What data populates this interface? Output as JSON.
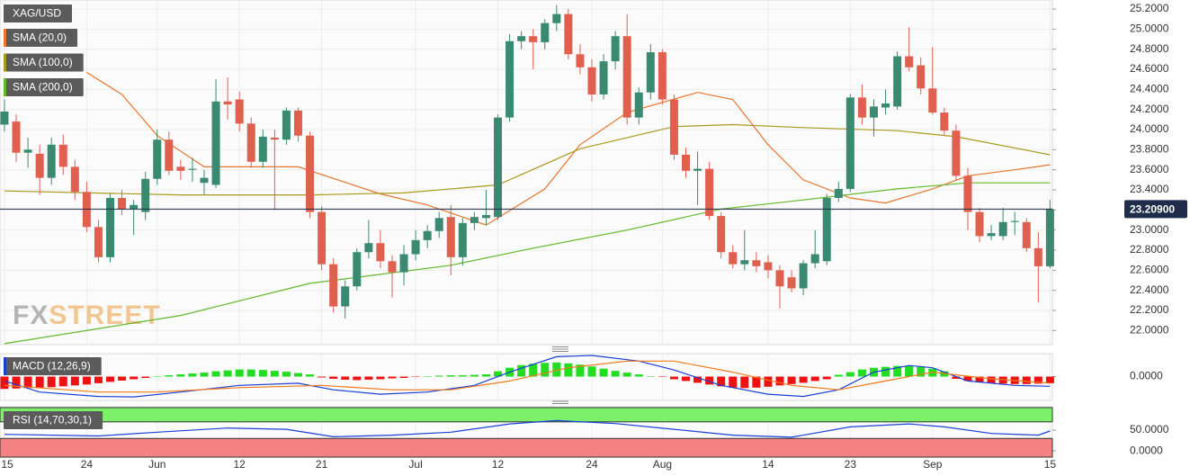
{
  "chart_data": [
    {
      "type": "candlestick",
      "symbol": "XAG/USD",
      "watermark": [
        "FX",
        "STREET"
      ],
      "up_color": "#3a8a72",
      "down_color": "#e0604f",
      "xlim": [
        -0.38,
        89.2
      ],
      "ylim": [
        21.86,
        25.29
      ],
      "yticks": [
        {
          "value": 22.0,
          "label": "22.0000"
        },
        {
          "value": 22.2,
          "label": "22.2000"
        },
        {
          "value": 22.4,
          "label": "22.4000"
        },
        {
          "value": 22.6,
          "label": "22.6000"
        },
        {
          "value": 22.8,
          "label": "22.8000"
        },
        {
          "value": 23.0,
          "label": "23.0000"
        },
        {
          "value": 23.2,
          "label": "23.2000"
        },
        {
          "value": 23.4,
          "label": "23.4000"
        },
        {
          "value": 23.6,
          "label": "23.6000"
        },
        {
          "value": 23.8,
          "label": "23.8000"
        },
        {
          "value": 24.0,
          "label": "24.0000"
        },
        {
          "value": 24.2,
          "label": "24.2000"
        },
        {
          "value": 24.4,
          "label": "24.4000"
        },
        {
          "value": 24.6,
          "label": "24.6000"
        },
        {
          "value": 24.8,
          "label": "24.8000"
        },
        {
          "value": 25.0,
          "label": "25.0000"
        },
        {
          "value": 25.2,
          "label": "25.2000"
        }
      ],
      "grid": true,
      "last_price": {
        "value": 23.209,
        "label": "23.20900"
      },
      "open": [
        24.05,
        24.08,
        23.77,
        23.76,
        23.52,
        23.85,
        23.63,
        23.38,
        23.03,
        22.73,
        23.32,
        23.21,
        23.18,
        23.51,
        23.9,
        23.63,
        23.6,
        23.47,
        23.45,
        24.28,
        24.3,
        24.06,
        23.68,
        23.92,
        23.9,
        24.19,
        23.94,
        23.18,
        22.66,
        22.24,
        22.44,
        22.78,
        22.87,
        22.69,
        22.58,
        22.76,
        22.9,
        22.99,
        23.13,
        22.73,
        23.07,
        23.12,
        23.13,
        24.12,
        24.88,
        24.93,
        24.87,
        25.06,
        25.15,
        24.75,
        24.62,
        24.35,
        24.68,
        24.93,
        24.12,
        24.37,
        24.77,
        24.3,
        23.75,
        23.59,
        23.61,
        23.14,
        22.78,
        22.66,
        22.7,
        22.68,
        22.6,
        22.53,
        22.42,
        22.67,
        22.69,
        23.32,
        23.41,
        24.32,
        24.12,
        24.22,
        24.23,
        24.73,
        24.64,
        24.41,
        24.17,
        23.99,
        23.54,
        23.18,
        22.94,
        22.94,
        23.08,
        23.08,
        22.82,
        22.64
      ],
      "high": [
        24.3,
        24.15,
        23.92,
        23.85,
        23.92,
        23.95,
        23.7,
        23.48,
        23.1,
        23.36,
        23.4,
        23.3,
        23.58,
        24.0,
        23.98,
        23.7,
        23.72,
        23.6,
        24.5,
        24.52,
        24.38,
        24.12,
        24.0,
        24.0,
        24.22,
        24.22,
        23.98,
        23.24,
        22.72,
        22.5,
        22.82,
        23.1,
        23.0,
        22.75,
        22.85,
        23.0,
        23.05,
        23.18,
        23.25,
        23.12,
        23.18,
        23.4,
        24.15,
        24.95,
        24.98,
        25.0,
        25.1,
        25.24,
        25.2,
        24.85,
        24.7,
        24.75,
        24.98,
        25.15,
        24.42,
        24.85,
        24.8,
        24.35,
        23.82,
        23.78,
        23.68,
        23.18,
        22.85,
        23.0,
        22.78,
        22.75,
        22.65,
        22.6,
        22.7,
        23.0,
        23.36,
        23.48,
        24.35,
        24.45,
        24.3,
        24.4,
        24.78,
        25.02,
        24.72,
        24.82,
        24.22,
        24.05,
        23.62,
        23.22,
        23.05,
        23.22,
        23.18,
        23.12,
        22.98,
        23.3
      ],
      "low": [
        23.98,
        23.68,
        23.62,
        23.35,
        23.45,
        23.55,
        23.3,
        22.98,
        22.68,
        22.68,
        23.15,
        22.95,
        23.1,
        23.45,
        23.55,
        23.5,
        23.48,
        23.35,
        23.42,
        24.1,
        23.98,
        23.62,
        23.62,
        23.2,
        23.85,
        23.88,
        23.12,
        22.6,
        22.18,
        22.12,
        22.4,
        22.72,
        22.62,
        22.33,
        22.45,
        22.7,
        22.82,
        22.92,
        22.55,
        22.65,
        23.0,
        23.05,
        23.1,
        24.08,
        24.8,
        24.6,
        24.8,
        24.98,
        24.7,
        24.55,
        24.28,
        24.3,
        24.6,
        24.05,
        24.05,
        24.3,
        24.25,
        23.7,
        23.52,
        23.25,
        23.1,
        22.72,
        22.62,
        22.6,
        22.58,
        22.52,
        22.22,
        22.38,
        22.35,
        22.62,
        22.65,
        23.28,
        23.38,
        24.05,
        23.93,
        24.15,
        24.2,
        24.58,
        24.35,
        24.15,
        23.95,
        23.5,
        23.0,
        22.88,
        22.9,
        22.9,
        22.95,
        22.78,
        22.28,
        22.62
      ],
      "close": [
        24.18,
        23.77,
        23.8,
        23.52,
        23.85,
        23.63,
        23.38,
        23.03,
        22.73,
        23.32,
        23.21,
        23.25,
        23.51,
        23.9,
        23.59,
        23.59,
        23.61,
        23.52,
        24.28,
        24.25,
        24.06,
        23.68,
        23.93,
        23.9,
        24.19,
        23.94,
        23.18,
        22.66,
        22.24,
        22.44,
        22.78,
        22.87,
        22.69,
        22.58,
        22.76,
        22.9,
        22.99,
        23.12,
        22.73,
        23.07,
        23.13,
        23.15,
        24.12,
        24.88,
        24.93,
        24.87,
        25.06,
        25.15,
        24.75,
        24.62,
        24.35,
        24.68,
        24.93,
        24.12,
        24.37,
        24.77,
        24.3,
        23.75,
        23.59,
        23.61,
        23.14,
        22.78,
        22.66,
        22.7,
        22.64,
        22.6,
        22.44,
        22.42,
        22.67,
        22.76,
        23.32,
        23.41,
        24.32,
        24.12,
        24.23,
        24.26,
        24.73,
        24.62,
        24.41,
        24.17,
        23.99,
        23.54,
        23.18,
        22.94,
        22.97,
        23.08,
        23.09,
        22.82,
        22.64,
        23.209
      ],
      "series": [
        {
          "name": "SMA (20,0)",
          "color": "#e8762d",
          "x": [
            7,
            10,
            13,
            17,
            25,
            32,
            36,
            41,
            46,
            49,
            53,
            59,
            62,
            65,
            68,
            72,
            75,
            79,
            82,
            86,
            89
          ],
          "values": [
            24.57,
            24.35,
            23.94,
            23.63,
            23.63,
            23.36,
            23.25,
            23.05,
            23.41,
            23.85,
            24.17,
            24.37,
            24.3,
            23.85,
            23.5,
            23.32,
            23.27,
            23.41,
            23.54,
            23.6,
            23.65
          ]
        },
        {
          "name": "SMA (100,0)",
          "color": "#a89a1e",
          "x": [
            0,
            15,
            26,
            34,
            42,
            49,
            57,
            62,
            68,
            76,
            81,
            89
          ],
          "values": [
            23.39,
            23.35,
            23.35,
            23.37,
            23.45,
            23.81,
            24.03,
            24.05,
            24.02,
            23.99,
            23.93,
            23.75
          ]
        },
        {
          "name": "SMA (200,0)",
          "color": "#64b82a",
          "x": [
            0,
            15,
            26,
            38,
            45,
            53,
            61,
            68,
            76,
            82,
            89
          ],
          "values": [
            21.87,
            22.15,
            22.47,
            22.65,
            22.82,
            23.0,
            23.21,
            23.3,
            23.41,
            23.47,
            23.47
          ]
        }
      ]
    },
    {
      "type": "macd",
      "title": "MACD (12,26,9)",
      "up_color": "#22dd22",
      "down_color": "#ee1111",
      "xlim": [
        -0.38,
        89.2
      ],
      "ylim": [
        -0.54,
        0.52
      ],
      "yticks": [
        {
          "value": 0,
          "label": "0.0000"
        }
      ],
      "values": [
        -0.28,
        -0.27,
        -0.26,
        -0.25,
        -0.24,
        -0.22,
        -0.2,
        -0.18,
        -0.15,
        -0.12,
        -0.09,
        -0.06,
        -0.03,
        0.01,
        0.03,
        0.05,
        0.07,
        0.09,
        0.12,
        0.14,
        0.16,
        0.16,
        0.15,
        0.13,
        0.11,
        0.08,
        0.05,
        -0.02,
        -0.05,
        -0.07,
        -0.08,
        -0.07,
        -0.06,
        -0.04,
        -0.03,
        -0.01,
        0.01,
        0.02,
        0.03,
        0.03,
        0.04,
        0.05,
        0.12,
        0.2,
        0.26,
        0.29,
        0.31,
        0.32,
        0.3,
        0.27,
        0.23,
        0.18,
        0.13,
        0.09,
        0.05,
        0.01,
        -0.01,
        -0.06,
        -0.1,
        -0.14,
        -0.18,
        -0.22,
        -0.25,
        -0.26,
        -0.25,
        -0.23,
        -0.2,
        -0.17,
        -0.14,
        -0.1,
        -0.06,
        0.04,
        0.1,
        0.16,
        0.2,
        0.22,
        0.24,
        0.24,
        0.22,
        0.18,
        0.12,
        -0.05,
        -0.1,
        -0.13,
        -0.15,
        -0.16,
        -0.17,
        -0.17,
        -0.16,
        -0.15
      ],
      "series": [
        {
          "color": "#1a3fd6",
          "x": [
            0,
            3,
            8,
            11,
            15,
            20,
            25,
            28,
            32,
            36,
            40,
            43,
            47,
            50,
            54,
            57,
            61,
            65,
            68,
            71,
            74,
            77,
            79,
            82,
            86,
            89
          ],
          "values": [
            -0.1,
            -0.35,
            -0.45,
            -0.46,
            -0.35,
            -0.2,
            -0.15,
            -0.3,
            -0.4,
            -0.35,
            -0.2,
            0.1,
            0.45,
            0.48,
            0.35,
            0.15,
            -0.2,
            -0.4,
            -0.45,
            -0.3,
            0.1,
            0.25,
            0.2,
            -0.1,
            -0.2,
            -0.22
          ]
        },
        {
          "color": "#f07a1a",
          "x": [
            0,
            8,
            13,
            20,
            27,
            33,
            38,
            43,
            48,
            53,
            57,
            62,
            67,
            71,
            75,
            79,
            84,
            89
          ],
          "values": [
            -0.2,
            -0.35,
            -0.35,
            -0.25,
            -0.2,
            -0.3,
            -0.3,
            -0.1,
            0.2,
            0.35,
            0.35,
            0.1,
            -0.2,
            -0.3,
            -0.1,
            0.1,
            -0.05,
            -0.15
          ]
        }
      ]
    },
    {
      "type": "rsi",
      "title": "RSI (14,70,30,1)",
      "overbought": 70,
      "oversold": 30,
      "xlim": [
        -0.38,
        89.2
      ],
      "ylim": [
        -15,
        106.5
      ],
      "yticks": [
        {
          "value": 50,
          "label": "50.0000"
        },
        {
          "value": 0,
          "label": "0.0000"
        }
      ],
      "xticks": [
        {
          "value": 0,
          "label": "15"
        },
        {
          "value": 7,
          "label": "24"
        },
        {
          "value": 13,
          "label": "Jun"
        },
        {
          "value": 20,
          "label": "12"
        },
        {
          "value": 27,
          "label": "21"
        },
        {
          "value": 35,
          "label": "Jul"
        },
        {
          "value": 42,
          "label": "12"
        },
        {
          "value": 50,
          "label": "24"
        },
        {
          "value": 56,
          "label": "Aug"
        },
        {
          "value": 65,
          "label": "14"
        },
        {
          "value": 72,
          "label": "23"
        },
        {
          "value": 79,
          "label": "Sep"
        },
        {
          "value": 89,
          "label": "15"
        }
      ],
      "series": [
        {
          "color": "#1a3fd6",
          "x": [
            0,
            8,
            13,
            19,
            24,
            28,
            33,
            38,
            43,
            47,
            52,
            57,
            62,
            67,
            72,
            77,
            80,
            84,
            88,
            89
          ],
          "values": [
            40,
            36,
            45,
            55,
            52,
            34,
            38,
            45,
            65,
            73,
            66,
            52,
            38,
            33,
            58,
            65,
            58,
            42,
            38,
            48
          ]
        }
      ]
    }
  ]
}
